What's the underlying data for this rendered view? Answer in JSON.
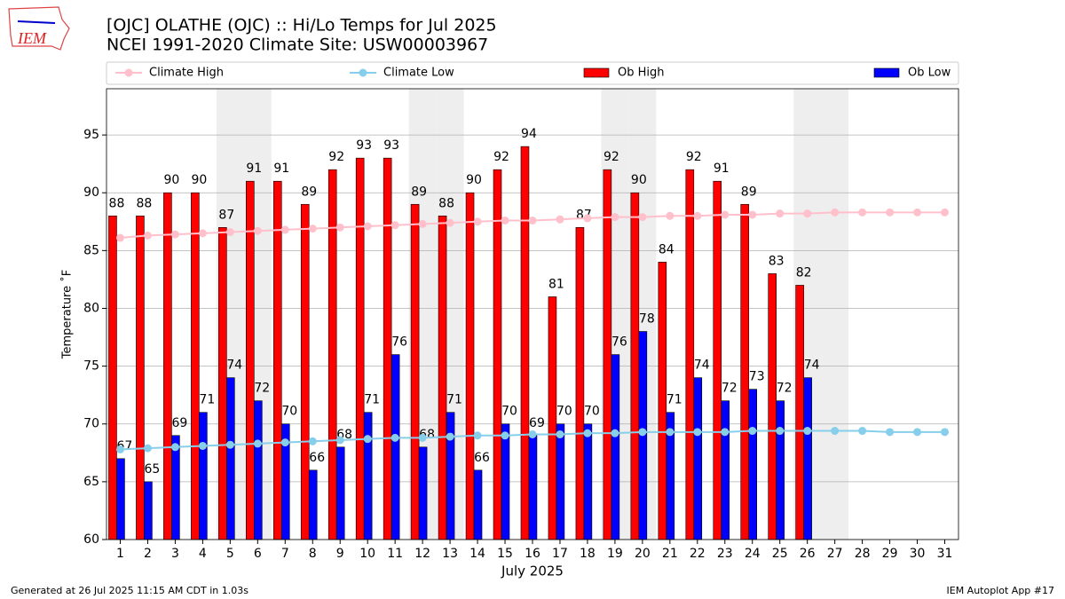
{
  "chart_data": {
    "type": "bar_line",
    "title": "[OJC] OLATHE (OJC) :: Hi/Lo Temps for Jul 2025",
    "subtitle": "NCEI 1991-2020 Climate Site: USW00003967",
    "logo_text": "IEM",
    "y_label": "Temperature ˚F",
    "x_label": "July 2025",
    "footer_left": "Generated at 26 Jul 2025 11:15 AM CDT in 1.03s",
    "footer_right": "IEM Autoplot App #17",
    "x": [
      1,
      2,
      3,
      4,
      5,
      6,
      7,
      8,
      9,
      10,
      11,
      12,
      13,
      14,
      15,
      16,
      17,
      18,
      19,
      20,
      21,
      22,
      23,
      24,
      25,
      26,
      27,
      28,
      29,
      30,
      31
    ],
    "xlim": [
      0.5,
      31.5
    ],
    "ylim": [
      60,
      99
    ],
    "yticks": [
      60,
      65,
      70,
      75,
      80,
      85,
      90,
      95
    ],
    "grid": true,
    "shaded_x": [
      5,
      6,
      12,
      13,
      19,
      20,
      26,
      27
    ],
    "shade_color": "#eeeeee",
    "series": [
      {
        "name": "Climate High",
        "type": "line",
        "color": "#ffc0cb",
        "values": [
          86.1,
          86.3,
          86.4,
          86.5,
          86.6,
          86.7,
          86.8,
          86.9,
          87.0,
          87.1,
          87.2,
          87.3,
          87.4,
          87.5,
          87.6,
          87.6,
          87.7,
          87.8,
          87.9,
          87.9,
          88.0,
          88.0,
          88.1,
          88.1,
          88.2,
          88.2,
          88.3,
          88.3,
          88.3,
          88.3,
          88.3
        ]
      },
      {
        "name": "Climate Low",
        "type": "line",
        "color": "#87ceeb",
        "values": [
          67.8,
          67.9,
          68.0,
          68.1,
          68.2,
          68.3,
          68.4,
          68.5,
          68.6,
          68.7,
          68.8,
          68.8,
          68.9,
          69.0,
          69.0,
          69.1,
          69.1,
          69.2,
          69.2,
          69.3,
          69.3,
          69.3,
          69.3,
          69.4,
          69.4,
          69.4,
          69.4,
          69.4,
          69.3,
          69.3,
          69.3
        ]
      },
      {
        "name": "Ob High",
        "type": "bar",
        "color": "#ff0000",
        "values": [
          88,
          88,
          90,
          90,
          87,
          91,
          91,
          89,
          92,
          93,
          93,
          89,
          88,
          90,
          92,
          94,
          81,
          87,
          92,
          90,
          84,
          92,
          91,
          89,
          83,
          82,
          null,
          null,
          null,
          null,
          null
        ]
      },
      {
        "name": "Ob Low",
        "type": "bar",
        "color": "#0000ff",
        "values": [
          67,
          65,
          69,
          71,
          74,
          72,
          70,
          66,
          68,
          71,
          76,
          68,
          71,
          66,
          70,
          69,
          70,
          70,
          76,
          78,
          71,
          74,
          72,
          73,
          72,
          74,
          null,
          null,
          null,
          null,
          null
        ]
      }
    ]
  }
}
